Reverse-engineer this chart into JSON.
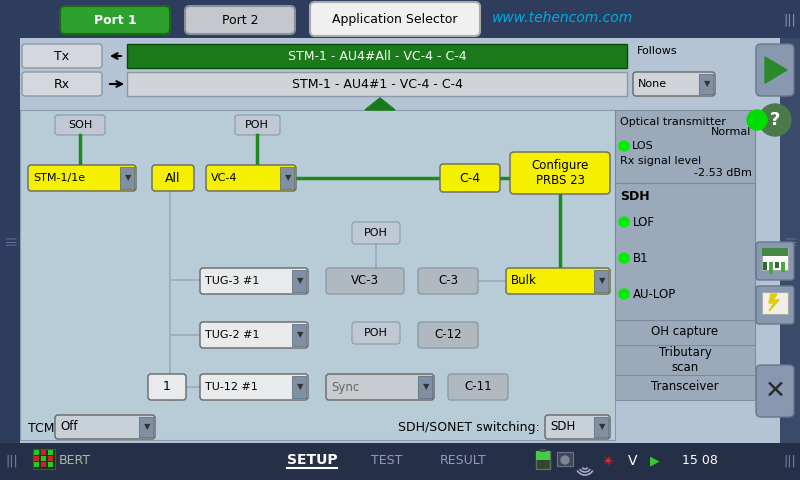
{
  "top_bar_color": "#2e3d5e",
  "main_area_bg": "#b0c0d0",
  "diagram_bg": "#b8cad8",
  "right_panel_bg": "#9aaabb",
  "title": "Application Selector",
  "port1_label": "Port 1",
  "port2_label": "Port 2",
  "watermark": "www.tehencom.com",
  "tx_label": "Tx",
  "rx_label": "Rx",
  "tx_signal": "STM-1 - AU4#All - VC-4 - C-4",
  "rx_signal": "STM-1 - AU4#1 - VC-4 - C-4",
  "follows_label": "Follows",
  "none_label": "None",
  "soh_label": "SOH",
  "poh_label": "POH",
  "stm_label": "STM-1/1e",
  "all_label": "All",
  "vc4_label": "VC-4",
  "c4_label": "C-4",
  "configure_label": "Configure\nPRBS 23",
  "tug3_label": "TUG-3 #1",
  "vc3_label": "VC-3",
  "c3_label": "C-3",
  "bulk_label": "Bulk",
  "tug2_label": "TUG-2 #1",
  "poh2_label": "POH",
  "c12_label": "C-12",
  "num1_label": "1",
  "tu12_label": "TU-12 #1",
  "sync_label": "Sync",
  "c11_label": "C-11",
  "tcm_label": "TCM:",
  "tcm_val": "Off",
  "sdh_sonet_label": "SDH/SONET switching:",
  "sdh_val": "SDH",
  "opt_tx_label": "Optical transmitter",
  "normal_label": "Normal",
  "los_label": "LOS",
  "rx_sig_label": "Rx signal level",
  "rx_sig_val": "-2.53 dBm",
  "sdh_section": "SDH",
  "lof_label": "LOF",
  "b1_label": "B1",
  "aulop_label": "AU-LOP",
  "oh_capture": "OH capture",
  "tributary_scan": "Tributary\nscan",
  "transceiver": "Transceiver",
  "bottom_tabs": [
    "BERT",
    "SETUP",
    "TEST",
    "RESULT"
  ],
  "time_label": "15 08",
  "yellow": "#f5f000",
  "green_dark": "#1a7a1a",
  "green_bright": "#00ee00",
  "gray_light": "#c8d0d8",
  "gray_med": "#b0b8c4",
  "gray_dark": "#9098a8",
  "white_ish": "#e8eaec",
  "dark_nav": "#252f48"
}
